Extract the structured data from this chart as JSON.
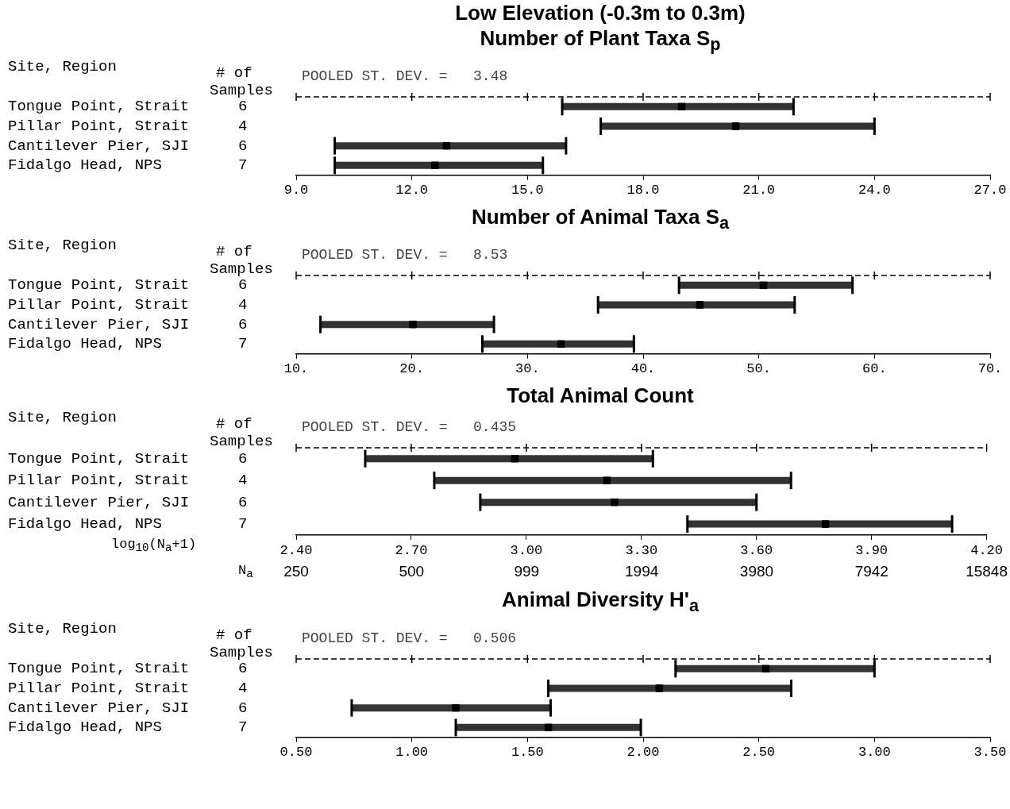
{
  "chart_data": [
    {
      "type": "scatter",
      "orientation": "horizontal",
      "title": "Low Elevation (-0.3m to 0.3m)",
      "subtitle": "Number of Plant Taxa S$_{p}$",
      "categories": [
        "Tongue Point, Strait",
        "Pillar Point, Strait",
        "Cantilever Pier, SJI",
        "Fidalgo Head, NPS"
      ],
      "series": [
        {
          "color": "#000000",
          "values": [
            19.0,
            20.4,
            12.9,
            12.6
          ],
          "errors": [
            [
              15.9,
              21.9
            ],
            [
              16.9,
              24.0
            ],
            [
              10.0,
              16.0
            ],
            [
              10.0,
              15.4
            ]
          ]
        }
      ],
      "xlim": [
        9,
        27
      ],
      "xticks": [
        {
          "value": 9,
          "label": "9.0"
        },
        {
          "value": 12,
          "label": "12.0"
        },
        {
          "value": 15,
          "label": "15.0"
        },
        {
          "value": 18,
          "label": "18.0"
        },
        {
          "value": 21,
          "label": "21.0"
        },
        {
          "value": 24,
          "label": "24.0"
        },
        {
          "value": 27,
          "label": "27.0"
        }
      ],
      "annotations": [
        "Site, Region",
        "# of Samples",
        "POOLED ST. DEV. =   3.48",
        "6",
        "4",
        "6",
        "7"
      ],
      "marker": "square"
    },
    {
      "type": "scatter",
      "orientation": "horizontal",
      "title": "Number of Animal Taxa S$_{a}$",
      "categories": [
        "Tongue Point, Strait",
        "Pillar Point, Strait",
        "Cantilever Pier, SJI",
        "Fidalgo Head, NPS"
      ],
      "series": [
        {
          "color": "#000000",
          "values": [
            50.4,
            44.9,
            20.1,
            32.9
          ],
          "errors": [
            [
              43.1,
              58.1
            ],
            [
              36.1,
              53.1
            ],
            [
              12.1,
              27.1
            ],
            [
              26.1,
              39.2
            ]
          ]
        }
      ],
      "xlim": [
        10,
        70
      ],
      "xticks": [
        {
          "value": 10,
          "label": "10."
        },
        {
          "value": 20,
          "label": "20."
        },
        {
          "value": 30,
          "label": "30."
        },
        {
          "value": 40,
          "label": "40."
        },
        {
          "value": 50,
          "label": "50."
        },
        {
          "value": 60,
          "label": "60."
        },
        {
          "value": 70,
          "label": "70."
        }
      ],
      "annotations": [
        "Site, Region",
        "# of Samples",
        "POOLED ST. DEV. =   8.53",
        "6",
        "4",
        "6",
        "7"
      ],
      "marker": "square"
    },
    {
      "type": "scatter",
      "orientation": "horizontal",
      "title": "Total Animal Count",
      "categories": [
        "Tongue Point, Strait",
        "Pillar Point, Strait",
        "Cantilever Pier, SJI",
        "Fidalgo Head, NPS"
      ],
      "series": [
        {
          "color": "#000000",
          "values": [
            2.97,
            3.21,
            3.23,
            3.78
          ],
          "errors": [
            [
              2.58,
              3.33
            ],
            [
              2.76,
              3.69
            ],
            [
              2.88,
              3.6
            ],
            [
              3.42,
              4.11
            ]
          ]
        }
      ],
      "xlim": [
        2.4,
        4.2
      ],
      "xticks": [
        {
          "value": 2.4,
          "label": "2.40"
        },
        {
          "value": 2.7,
          "label": "2.70"
        },
        {
          "value": 3.0,
          "label": "3.00"
        },
        {
          "value": 3.3,
          "label": "3.30"
        },
        {
          "value": 3.6,
          "label": "3.60"
        },
        {
          "value": 3.9,
          "label": "3.90"
        },
        {
          "value": 4.2,
          "label": "4.20"
        }
      ],
      "xlabel": "log$_{10}$(N$_{a}$+1)",
      "x2label": "N$_{a}$",
      "log": "x2",
      "x2lim": [
        250,
        15848
      ],
      "x2ticks": [
        250,
        500,
        999,
        1994,
        3980,
        7942,
        15848
      ],
      "annotations": [
        "Site, Region",
        "# of Samples",
        "POOLED ST. DEV. =   0.435",
        "6",
        "4",
        "6",
        "7"
      ],
      "marker": "square"
    },
    {
      "type": "scatter",
      "orientation": "horizontal",
      "title": "Animal Diversity H'$_{a}$",
      "categories": [
        "Tongue Point, Strait",
        "Pillar Point, Strait",
        "Cantilever Pier, SJI",
        "Fidalgo Head, NPS"
      ],
      "series": [
        {
          "color": "#000000",
          "values": [
            2.53,
            2.07,
            1.19,
            1.59
          ],
          "errors": [
            [
              2.14,
              3.0
            ],
            [
              1.59,
              2.64
            ],
            [
              0.74,
              1.6
            ],
            [
              1.19,
              1.99
            ]
          ]
        }
      ],
      "xlim": [
        0.5,
        3.5
      ],
      "xticks": [
        {
          "value": 0.5,
          "label": "0.50"
        },
        {
          "value": 1.0,
          "label": "1.00"
        },
        {
          "value": 1.5,
          "label": "1.50"
        },
        {
          "value": 2.0,
          "label": "2.00"
        },
        {
          "value": 2.5,
          "label": "2.50"
        },
        {
          "value": 3.0,
          "label": "3.00"
        },
        {
          "value": 3.5,
          "label": "3.50"
        }
      ],
      "annotations": [
        "Site, Region",
        "# of Samples",
        "POOLED ST. DEV. =   0.506",
        "6",
        "4",
        "6",
        "7"
      ],
      "marker": "square"
    }
  ]
}
